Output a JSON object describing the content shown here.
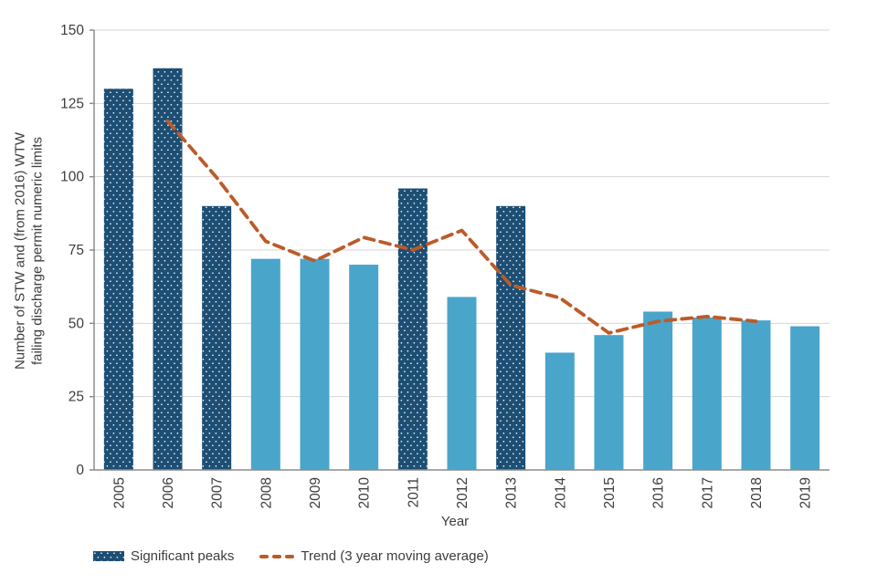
{
  "chart_data": {
    "type": "bar",
    "title": "",
    "xlabel": "Year",
    "ylabel_lines": [
      "Number of STW and (from 2016) WTW",
      "failing discharge permit numeric limits"
    ],
    "ylim": [
      0,
      150
    ],
    "yticks": [
      0,
      25,
      50,
      75,
      100,
      125,
      150
    ],
    "grid": "horizontal",
    "legend_position": "bottom-left",
    "categories": [
      "2005",
      "2006",
      "2007",
      "2008",
      "2009",
      "2010",
      "2011",
      "2012",
      "2013",
      "2014",
      "2015",
      "2016",
      "2017",
      "2018",
      "2019"
    ],
    "series": [
      {
        "name": "STW and WTW failing discharge permit numeric limits",
        "type": "bar",
        "values": [
          130,
          137,
          90,
          72,
          72,
          70,
          96,
          59,
          90,
          40,
          46,
          54,
          52,
          51,
          49
        ],
        "significant_peak_years": [
          "2005",
          "2006",
          "2007",
          "2011",
          "2013"
        ]
      },
      {
        "name": "Trend (3 year moving average)",
        "type": "line-dashed",
        "x": [
          "2006",
          "2007",
          "2008",
          "2009",
          "2010",
          "2011",
          "2012",
          "2013",
          "2014",
          "2015",
          "2016",
          "2017",
          "2018"
        ],
        "values": [
          119.0,
          99.7,
          78.0,
          71.3,
          79.3,
          75.0,
          81.7,
          63.0,
          58.7,
          46.7,
          50.7,
          52.3,
          50.7
        ]
      }
    ],
    "legend": [
      {
        "label": "Significant peaks",
        "swatch": "patterned-bar"
      },
      {
        "label": "Trend (3 year moving average)",
        "swatch": "dashed-line"
      }
    ],
    "colors": {
      "bar_light": "#4aa5cb",
      "bar_dark": "#1d4e74",
      "bar_dot": "#ffffff",
      "trend": "#bc5b28",
      "grid": "#d6d6d6",
      "axis": "#8c8c8c",
      "text": "#3d3d3d"
    }
  }
}
